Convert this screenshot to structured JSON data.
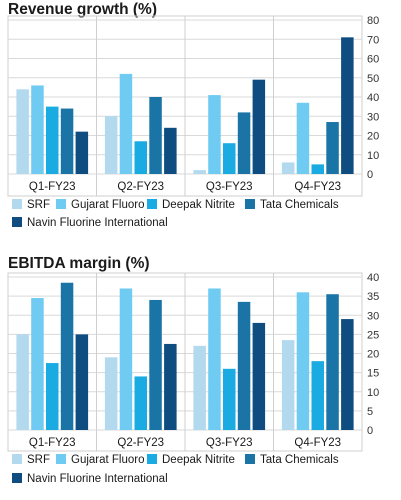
{
  "colors": {
    "SRF": "#b3d9ee",
    "Gujarat Fluoro": "#6fcbf1",
    "Deepak Nitrite": "#19abe2",
    "Tata Chemicals": "#1a75a6",
    "Navin Fluorine International": "#0f4d80"
  },
  "chart_data": [
    {
      "type": "bar",
      "title": "Revenue growth (%)",
      "categories": [
        "Q1-FY23",
        "Q2-FY23",
        "Q3-FY23",
        "Q4-FY23"
      ],
      "ylim": [
        0,
        80
      ],
      "yticks": [
        0,
        10,
        20,
        30,
        40,
        50,
        60,
        70,
        80
      ],
      "grid": true,
      "legend_placement": "bottom",
      "series": [
        {
          "name": "SRF",
          "values": [
            44,
            30,
            2,
            6
          ]
        },
        {
          "name": "Gujarat Fluoro",
          "values": [
            46,
            52,
            41,
            37
          ]
        },
        {
          "name": "Deepak Nitrite",
          "values": [
            35,
            17,
            16,
            5
          ]
        },
        {
          "name": "Tata Chemicals",
          "values": [
            34,
            40,
            32,
            27
          ]
        },
        {
          "name": "Navin Fluorine International",
          "values": [
            22,
            24,
            49,
            71
          ]
        }
      ]
    },
    {
      "type": "bar",
      "title": "EBITDA margin (%)",
      "categories": [
        "Q1-FY23",
        "Q2-FY23",
        "Q3-FY23",
        "Q4-FY23"
      ],
      "ylim": [
        0,
        40
      ],
      "yticks": [
        0,
        5,
        10,
        15,
        20,
        25,
        30,
        35,
        40
      ],
      "grid": true,
      "legend_placement": "bottom",
      "series": [
        {
          "name": "SRF",
          "values": [
            25,
            19,
            22,
            23.5
          ]
        },
        {
          "name": "Gujarat Fluoro",
          "values": [
            34.5,
            37,
            37,
            36
          ]
        },
        {
          "name": "Deepak Nitrite",
          "values": [
            17.5,
            14,
            16,
            18
          ]
        },
        {
          "name": "Tata Chemicals",
          "values": [
            38.5,
            34,
            33.5,
            35.5
          ]
        },
        {
          "name": "Navin Fluorine International",
          "values": [
            25,
            22.5,
            28,
            29
          ]
        }
      ]
    }
  ]
}
